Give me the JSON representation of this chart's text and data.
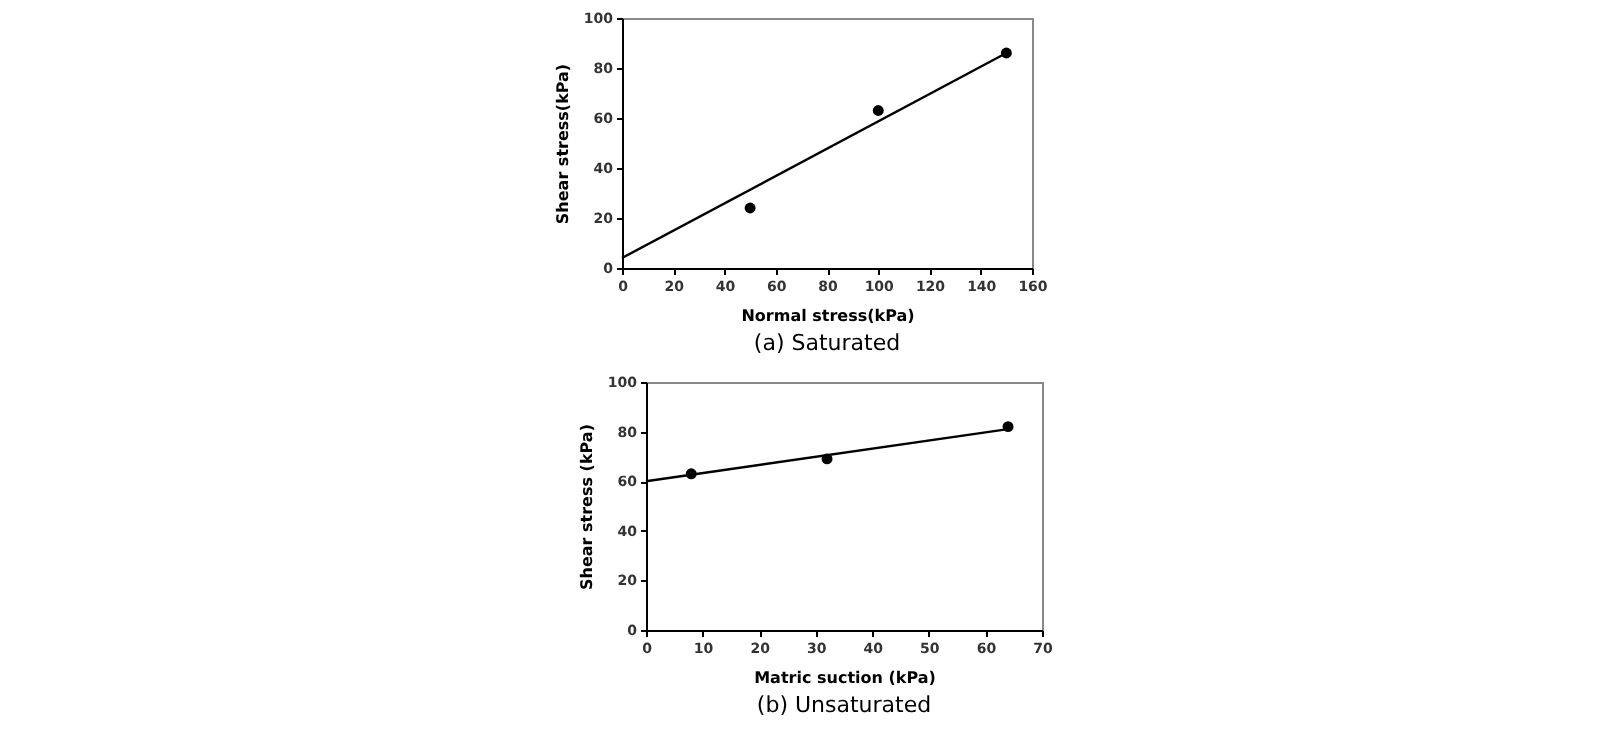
{
  "chart_data": [
    {
      "type": "scatter",
      "title": "(a) Saturated",
      "xlabel": "Normal stress(kPa)",
      "ylabel": "Shear stress(kPa)",
      "xlim": [
        0,
        160
      ],
      "ylim": [
        0,
        100
      ],
      "xticks": [
        0,
        20,
        40,
        60,
        80,
        100,
        120,
        140,
        160
      ],
      "yticks": [
        0,
        20,
        40,
        60,
        80,
        100
      ],
      "grid": false,
      "series": [
        {
          "color": "#000000",
          "marker": "circle",
          "x": [
            50,
            100,
            150
          ],
          "values": [
            24,
            63,
            86
          ]
        },
        {
          "type": "line",
          "color": "#000000",
          "x": [
            0,
            150
          ],
          "values": [
            4,
            86
          ]
        }
      ]
    },
    {
      "type": "scatter",
      "title": "(b) Unsaturated",
      "xlabel": "Matric suction (kPa)",
      "ylabel": "Shear stress (kPa)",
      "xlim": [
        0,
        70
      ],
      "ylim": [
        0,
        100
      ],
      "xticks": [
        0,
        10,
        20,
        30,
        40,
        50,
        60,
        70
      ],
      "yticks": [
        0,
        20,
        40,
        60,
        80,
        100
      ],
      "grid": false,
      "series": [
        {
          "color": "#000000",
          "marker": "circle",
          "x": [
            8,
            32,
            64
          ],
          "values": [
            63,
            69,
            82
          ]
        },
        {
          "type": "line",
          "color": "#000000",
          "x": [
            0,
            64
          ],
          "values": [
            60,
            81
          ]
        }
      ]
    }
  ]
}
